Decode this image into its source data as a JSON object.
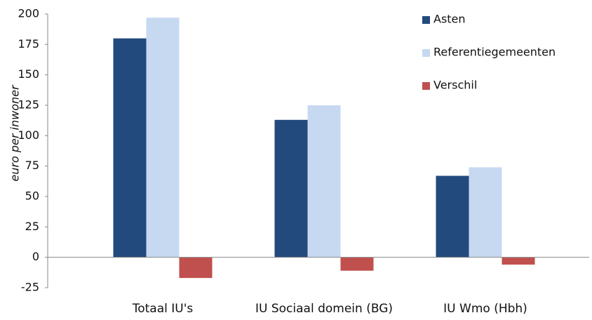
{
  "chart_data": {
    "type": "bar",
    "y_label": "euro per inwoner",
    "categories": [
      "Totaal IU's",
      "IU Sociaal domein (BG)",
      "IU Wmo (Hbh)"
    ],
    "series": [
      {
        "name": "Asten",
        "color": "#234a7d",
        "values": [
          180,
          113,
          67
        ]
      },
      {
        "name": "Referentiegemeenten",
        "color": "#c6d9f1",
        "values": [
          197,
          125,
          74
        ]
      },
      {
        "name": "Verschil",
        "color": "#c0504d",
        "values": [
          -17,
          -11,
          -6
        ]
      }
    ],
    "ylim": [
      -25,
      200
    ],
    "yticks": [
      -25,
      0,
      25,
      50,
      75,
      100,
      125,
      150,
      175,
      200
    ],
    "grid": false,
    "legend": "top-right"
  }
}
